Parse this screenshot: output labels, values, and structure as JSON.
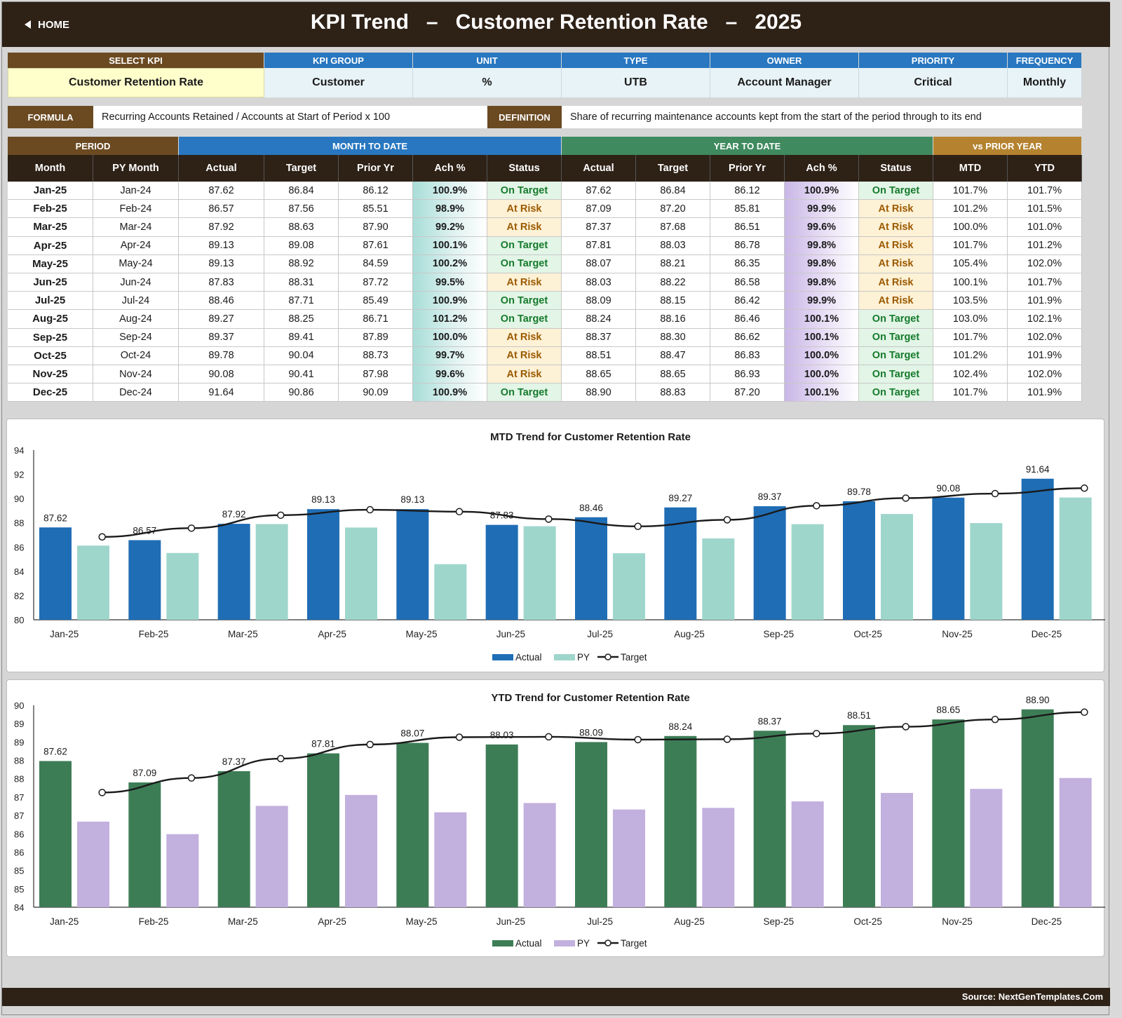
{
  "header": {
    "home_label": "HOME",
    "title": "KPI Trend   –   Customer Retention Rate   –   2025"
  },
  "kpi_info": {
    "labels": [
      "SELECT KPI",
      "KPI GROUP",
      "UNIT",
      "TYPE",
      "OWNER",
      "PRIORITY",
      "FREQUENCY"
    ],
    "values": [
      "Customer Retention Rate",
      "Customer",
      "%",
      "UTB",
      "Account Manager",
      "Critical",
      "Monthly"
    ]
  },
  "formula": {
    "label": "FORMULA",
    "text": "Recurring Accounts Retained / Accounts at Start of Period x 100",
    "definition_label": "DEFINITION",
    "definition_text": "Share of recurring maintenance accounts kept from the start of the period through to its end"
  },
  "table": {
    "group_headers": [
      "PERIOD",
      "MONTH TO DATE",
      "YEAR TO DATE",
      "vs PRIOR YEAR"
    ],
    "columns": [
      "Month",
      "PY Month",
      "Actual",
      "Target",
      "Prior Yr",
      "Ach %",
      "Status",
      "Actual",
      "Target",
      "Prior Yr",
      "Ach %",
      "Status",
      "MTD",
      "YTD"
    ],
    "rows": [
      [
        "Jan-25",
        "Jan-24",
        "87.62",
        "86.84",
        "86.12",
        "100.9%",
        "On Target",
        "87.62",
        "86.84",
        "86.12",
        "100.9%",
        "On Target",
        "101.7%",
        "101.7%"
      ],
      [
        "Feb-25",
        "Feb-24",
        "86.57",
        "87.56",
        "85.51",
        "98.9%",
        "At Risk",
        "87.09",
        "87.20",
        "85.81",
        "99.9%",
        "At Risk",
        "101.2%",
        "101.5%"
      ],
      [
        "Mar-25",
        "Mar-24",
        "87.92",
        "88.63",
        "87.90",
        "99.2%",
        "At Risk",
        "87.37",
        "87.68",
        "86.51",
        "99.6%",
        "At Risk",
        "100.0%",
        "101.0%"
      ],
      [
        "Apr-25",
        "Apr-24",
        "89.13",
        "89.08",
        "87.61",
        "100.1%",
        "On Target",
        "87.81",
        "88.03",
        "86.78",
        "99.8%",
        "At Risk",
        "101.7%",
        "101.2%"
      ],
      [
        "May-25",
        "May-24",
        "89.13",
        "88.92",
        "84.59",
        "100.2%",
        "On Target",
        "88.07",
        "88.21",
        "86.35",
        "99.8%",
        "At Risk",
        "105.4%",
        "102.0%"
      ],
      [
        "Jun-25",
        "Jun-24",
        "87.83",
        "88.31",
        "87.72",
        "99.5%",
        "At Risk",
        "88.03",
        "88.22",
        "86.58",
        "99.8%",
        "At Risk",
        "100.1%",
        "101.7%"
      ],
      [
        "Jul-25",
        "Jul-24",
        "88.46",
        "87.71",
        "85.49",
        "100.9%",
        "On Target",
        "88.09",
        "88.15",
        "86.42",
        "99.9%",
        "At Risk",
        "103.5%",
        "101.9%"
      ],
      [
        "Aug-25",
        "Aug-24",
        "89.27",
        "88.25",
        "86.71",
        "101.2%",
        "On Target",
        "88.24",
        "88.16",
        "86.46",
        "100.1%",
        "On Target",
        "103.0%",
        "102.1%"
      ],
      [
        "Sep-25",
        "Sep-24",
        "89.37",
        "89.41",
        "87.89",
        "100.0%",
        "At Risk",
        "88.37",
        "88.30",
        "86.62",
        "100.1%",
        "On Target",
        "101.7%",
        "102.0%"
      ],
      [
        "Oct-25",
        "Oct-24",
        "89.78",
        "90.04",
        "88.73",
        "99.7%",
        "At Risk",
        "88.51",
        "88.47",
        "86.83",
        "100.0%",
        "On Target",
        "101.2%",
        "101.9%"
      ],
      [
        "Nov-25",
        "Nov-24",
        "90.08",
        "90.41",
        "87.98",
        "99.6%",
        "At Risk",
        "88.65",
        "88.65",
        "86.93",
        "100.0%",
        "On Target",
        "102.4%",
        "102.0%"
      ],
      [
        "Dec-25",
        "Dec-24",
        "91.64",
        "90.86",
        "90.09",
        "100.9%",
        "On Target",
        "88.90",
        "88.83",
        "87.20",
        "100.1%",
        "On Target",
        "101.7%",
        "101.9%"
      ]
    ]
  },
  "chart_data": [
    {
      "type": "bar",
      "title": "MTD Trend for Customer Retention Rate",
      "categories": [
        "Jan-25",
        "Feb-25",
        "Mar-25",
        "Apr-25",
        "May-25",
        "Jun-25",
        "Jul-25",
        "Aug-25",
        "Sep-25",
        "Oct-25",
        "Nov-25",
        "Dec-25"
      ],
      "series": [
        {
          "name": "Actual",
          "kind": "bar",
          "color": "#1f6db5",
          "values": [
            87.62,
            86.57,
            87.92,
            89.13,
            89.13,
            87.83,
            88.46,
            89.27,
            89.37,
            89.78,
            90.08,
            91.64
          ]
        },
        {
          "name": "PY",
          "kind": "bar",
          "color": "#9fd6cc",
          "values": [
            86.12,
            85.51,
            87.9,
            87.61,
            84.59,
            87.72,
            85.49,
            86.71,
            87.89,
            88.73,
            87.98,
            90.09
          ]
        },
        {
          "name": "Target",
          "kind": "line",
          "color": "#1a1a1a",
          "values": [
            86.84,
            87.56,
            88.63,
            89.08,
            88.92,
            88.31,
            87.71,
            88.25,
            89.41,
            90.04,
            90.41,
            90.86
          ]
        }
      ],
      "ylim": [
        80,
        94
      ],
      "yticks": [
        "80",
        "82",
        "84",
        "86",
        "88",
        "90",
        "92",
        "94"
      ],
      "legend": "bottom"
    },
    {
      "type": "bar",
      "title": "YTD Trend for Customer Retention Rate",
      "categories": [
        "Jan-25",
        "Feb-25",
        "Mar-25",
        "Apr-25",
        "May-25",
        "Jun-25",
        "Jul-25",
        "Aug-25",
        "Sep-25",
        "Oct-25",
        "Nov-25",
        "Dec-25"
      ],
      "series": [
        {
          "name": "Actual",
          "kind": "bar",
          "color": "#3d7d56",
          "values": [
            87.62,
            87.09,
            87.37,
            87.81,
            88.07,
            88.03,
            88.09,
            88.24,
            88.37,
            88.51,
            88.65,
            88.9
          ]
        },
        {
          "name": "PY",
          "kind": "bar",
          "color": "#c2b0de",
          "values": [
            86.12,
            85.81,
            86.51,
            86.78,
            86.35,
            86.58,
            86.42,
            86.46,
            86.62,
            86.83,
            86.93,
            87.2
          ]
        },
        {
          "name": "Target",
          "kind": "line",
          "color": "#1a1a1a",
          "values": [
            86.84,
            87.2,
            87.68,
            88.03,
            88.21,
            88.22,
            88.15,
            88.16,
            88.3,
            88.47,
            88.65,
            88.83
          ]
        }
      ],
      "ylim": [
        84,
        89.0
      ],
      "yticks": [
        "84",
        "85",
        "85",
        "86",
        "86",
        "87",
        "87",
        "88",
        "88",
        "89",
        "89",
        "90"
      ],
      "legend": "bottom"
    }
  ],
  "colors": {
    "dark_brown": "#2e2116",
    "period_brown": "#6b4a22",
    "mtd_blue": "#2877c0",
    "ytd_green": "#3f8a5f",
    "vspy_gold": "#b5832f"
  },
  "footer": {
    "source": "Source: NextGenTemplates.Com"
  }
}
